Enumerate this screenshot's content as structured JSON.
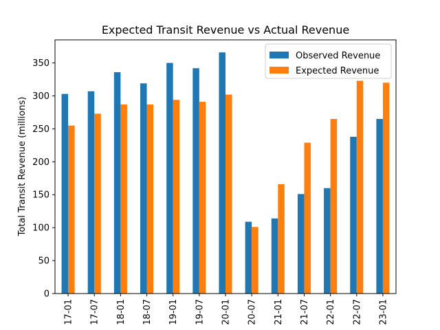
{
  "chart_data": {
    "type": "bar",
    "title": "Expected Transit Revenue vs Actual Revenue",
    "xlabel": "",
    "ylabel": "Total Transit Revenue (millions)",
    "ylim": [
      0,
      385
    ],
    "yticks": [
      0,
      50,
      100,
      150,
      200,
      250,
      300,
      350
    ],
    "grid": false,
    "legend_position": "top-right",
    "categories": [
      "17-01",
      "17-07",
      "18-01",
      "18-07",
      "19-01",
      "19-07",
      "20-01",
      "20-07",
      "21-01",
      "21-07",
      "22-01",
      "22-07",
      "23-01"
    ],
    "series": [
      {
        "name": "Observed Revenue",
        "color": "#1f77b4",
        "values": [
          303,
          307,
          336,
          319,
          350,
          342,
          366,
          109,
          114,
          151,
          160,
          238,
          265
        ]
      },
      {
        "name": "Expected Revenue",
        "color": "#ff7f0e",
        "values": [
          255,
          273,
          287,
          287,
          294,
          291,
          302,
          101,
          166,
          229,
          265,
          323,
          320
        ]
      }
    ]
  }
}
